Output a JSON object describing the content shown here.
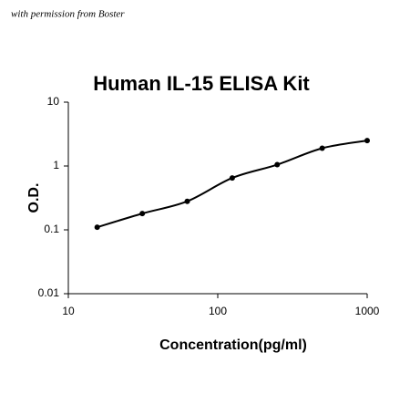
{
  "chart_data": {
    "type": "scatter",
    "credit": "with permission from Boster",
    "title": "Human IL-15 ELISA Kit",
    "x_label": "Concentration(pg/ml)",
    "y_label": "O.D.",
    "x": [
      15.6,
      31.25,
      62.5,
      125,
      250,
      500,
      1000
    ],
    "values": [
      0.11,
      0.18,
      0.28,
      0.65,
      1.05,
      1.9,
      2.5
    ],
    "color": "#000000",
    "xscale": "log",
    "yscale": "log",
    "xlim": [
      10,
      1000
    ],
    "ylim": [
      0.01,
      10
    ],
    "xticks": [
      10,
      100,
      1000
    ],
    "yticks": [
      0.01,
      0.1,
      1,
      10
    ],
    "fit_curve": true
  }
}
